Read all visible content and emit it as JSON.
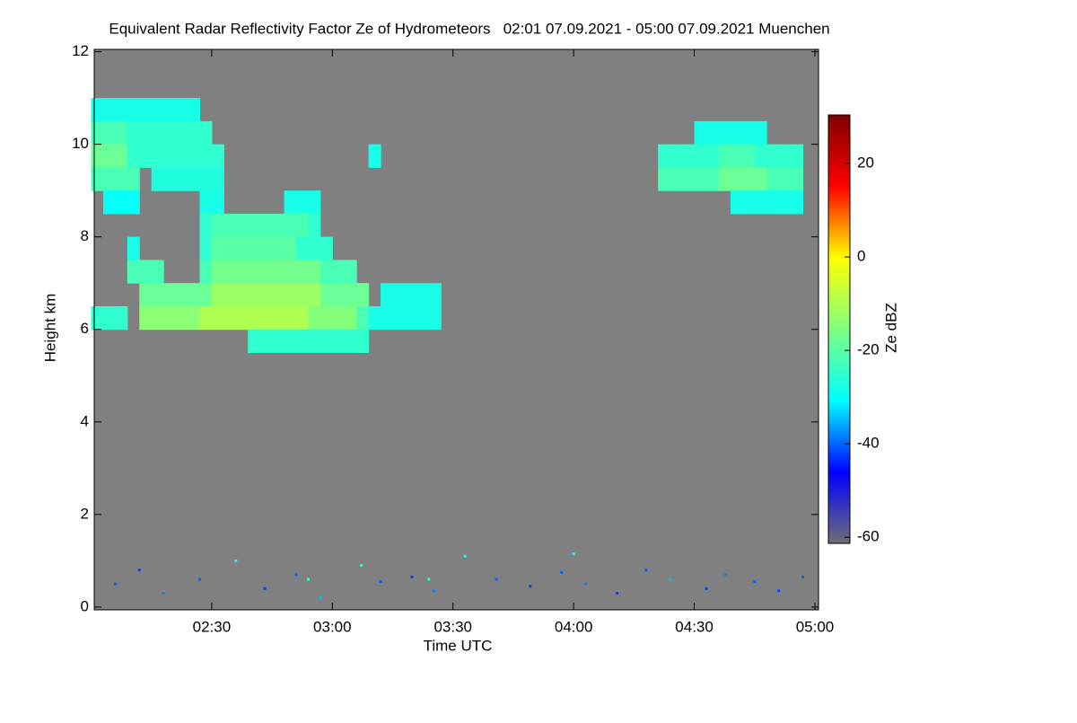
{
  "chart_data": {
    "type": "heatmap",
    "title": "Equivalent Radar Reflectivity Factor Ze of Hydrometeors   02:01 07.09.2021 - 05:00 07.09.2021 Muenchen",
    "xlabel": "Time UTC",
    "ylabel": "Height km",
    "colorbar_label": "Ze dBZ",
    "xlim": [
      2.013,
      5.015
    ],
    "ylim": [
      -0.06,
      12.05
    ],
    "zlim": [
      -61.3,
      30.4
    ],
    "xticks": [
      {
        "value": 2.5,
        "label": "02:30"
      },
      {
        "value": 3,
        "label": "03:00"
      },
      {
        "value": 3.5,
        "label": "03:30"
      },
      {
        "value": 4,
        "label": "04:00"
      },
      {
        "value": 4.5,
        "label": "04:30"
      },
      {
        "value": 5,
        "label": "05:00"
      }
    ],
    "yticks": [
      0,
      2,
      4,
      6,
      8,
      10,
      12
    ],
    "zticks": [
      -60,
      -40,
      -20,
      0,
      20
    ],
    "colormap": [
      "#6e6e78",
      "#0000ff",
      "#00ffff",
      "#80ff80",
      "#ffff00",
      "#ff0000",
      "#800000"
    ],
    "x": [
      2.025,
      2.075,
      2.125,
      2.175,
      2.225,
      2.275,
      2.325,
      2.375,
      2.425,
      2.475,
      2.525,
      2.575,
      2.625,
      2.675,
      2.725,
      2.775,
      2.825,
      2.875,
      2.925,
      2.975,
      3.025,
      3.075,
      3.125,
      3.175,
      3.225,
      3.275,
      3.325,
      3.375,
      3.425,
      3.475,
      3.525,
      3.575,
      3.625,
      3.675,
      3.725,
      3.775,
      3.825,
      3.875,
      3.925,
      3.975,
      4.025,
      4.075,
      4.125,
      4.175,
      4.225,
      4.275,
      4.325,
      4.375,
      4.425,
      4.475,
      4.525,
      4.575,
      4.625,
      4.675,
      4.725,
      4.775,
      4.825,
      4.875,
      4.925,
      4.975
    ],
    "y": [
      10.75,
      10.25,
      9.75,
      9.25,
      8.75,
      8.25,
      7.75,
      7.25,
      6.75,
      6.25,
      5.75
    ],
    "z": [
      [
        -28,
        -28,
        -28,
        -28,
        -28,
        -28,
        -28,
        -28,
        -28,
        null,
        null,
        null,
        null,
        null,
        null,
        null,
        null,
        null,
        null,
        null,
        null,
        null,
        null,
        null,
        null,
        null,
        null,
        null,
        null,
        null,
        null,
        null,
        null,
        null,
        null,
        null,
        null,
        null,
        null,
        null,
        null,
        null,
        null,
        null,
        null,
        null,
        null,
        null,
        null,
        null,
        null,
        null,
        null,
        null,
        null,
        null,
        null,
        null,
        null,
        null
      ],
      [
        -22,
        -22,
        -22,
        -25,
        -25,
        -25,
        -25,
        -25,
        -25,
        -25,
        null,
        null,
        null,
        null,
        null,
        null,
        null,
        null,
        null,
        null,
        null,
        null,
        null,
        null,
        null,
        null,
        null,
        null,
        null,
        null,
        null,
        null,
        null,
        null,
        null,
        null,
        null,
        null,
        null,
        null,
        null,
        null,
        null,
        null,
        null,
        null,
        null,
        null,
        null,
        null,
        -28,
        -28,
        -28,
        -28,
        -28,
        -28,
        null,
        null,
        null,
        null
      ],
      [
        -18,
        -18,
        -18,
        -25,
        -25,
        -25,
        -25,
        -25,
        -25,
        -25,
        -25,
        null,
        null,
        null,
        null,
        null,
        null,
        null,
        null,
        null,
        null,
        null,
        null,
        -28,
        null,
        null,
        null,
        null,
        null,
        null,
        null,
        null,
        null,
        null,
        null,
        null,
        null,
        null,
        null,
        null,
        null,
        null,
        null,
        null,
        null,
        null,
        null,
        -25,
        -25,
        -25,
        -25,
        -25,
        -22,
        -22,
        -22,
        -25,
        -25,
        -25,
        -25,
        null
      ],
      [
        -22,
        -22,
        -22,
        -22,
        null,
        -27,
        -27,
        -27,
        -27,
        -27,
        -27,
        null,
        null,
        null,
        null,
        null,
        null,
        null,
        null,
        null,
        null,
        null,
        null,
        null,
        null,
        null,
        null,
        null,
        null,
        null,
        null,
        null,
        null,
        null,
        null,
        null,
        null,
        null,
        null,
        null,
        null,
        null,
        null,
        null,
        null,
        null,
        null,
        -22,
        -22,
        -22,
        -22,
        -22,
        -18,
        -18,
        -18,
        -18,
        -22,
        -22,
        -22,
        null
      ],
      [
        null,
        -30,
        -30,
        -30,
        null,
        null,
        null,
        null,
        null,
        -28,
        -28,
        null,
        null,
        null,
        null,
        null,
        -28,
        -28,
        -28,
        null,
        null,
        null,
        null,
        null,
        null,
        null,
        null,
        null,
        null,
        null,
        null,
        null,
        null,
        null,
        null,
        null,
        null,
        null,
        null,
        null,
        null,
        null,
        null,
        null,
        null,
        null,
        null,
        null,
        null,
        null,
        null,
        null,
        null,
        -28,
        -28,
        -28,
        -28,
        -28,
        -28,
        null
      ],
      [
        null,
        null,
        null,
        null,
        null,
        null,
        null,
        null,
        null,
        -25,
        -22,
        -22,
        -22,
        -22,
        -22,
        -22,
        -22,
        -22,
        -25,
        null,
        null,
        null,
        null,
        null,
        null,
        null,
        null,
        null,
        null,
        null,
        null,
        null,
        null,
        null,
        null,
        null,
        null,
        null,
        null,
        null,
        null,
        null,
        null,
        null,
        null,
        null,
        null,
        null,
        null,
        null,
        null,
        null,
        null,
        null,
        null,
        null,
        null,
        null,
        null,
        null
      ],
      [
        null,
        null,
        null,
        -28,
        null,
        null,
        null,
        null,
        null,
        -25,
        -20,
        -20,
        -20,
        -20,
        -20,
        -20,
        -20,
        -25,
        -25,
        -25,
        null,
        null,
        null,
        null,
        null,
        null,
        null,
        null,
        null,
        null,
        null,
        null,
        null,
        null,
        null,
        null,
        null,
        null,
        null,
        null,
        null,
        null,
        null,
        null,
        null,
        null,
        null,
        null,
        null,
        null,
        null,
        null,
        null,
        null,
        null,
        null,
        null,
        null,
        null,
        null
      ],
      [
        null,
        null,
        null,
        -22,
        -22,
        -22,
        null,
        null,
        null,
        -22,
        -17,
        -17,
        -17,
        -17,
        -17,
        -17,
        -17,
        -17,
        -17,
        -22,
        -22,
        -22,
        null,
        null,
        null,
        null,
        null,
        null,
        null,
        null,
        null,
        null,
        null,
        null,
        null,
        null,
        null,
        null,
        null,
        null,
        null,
        null,
        null,
        null,
        null,
        null,
        null,
        null,
        null,
        null,
        null,
        null,
        null,
        null,
        null,
        null,
        null,
        null,
        null,
        null
      ],
      [
        null,
        null,
        null,
        null,
        -18,
        -18,
        -18,
        -18,
        -18,
        -18,
        -12,
        -12,
        -12,
        -12,
        -12,
        -12,
        -12,
        -12,
        -12,
        -18,
        -18,
        -18,
        -18,
        null,
        -28,
        -28,
        -28,
        -28,
        -28,
        null,
        null,
        null,
        null,
        null,
        null,
        null,
        null,
        null,
        null,
        null,
        null,
        null,
        null,
        null,
        null,
        null,
        null,
        null,
        null,
        null,
        null,
        null,
        null,
        null,
        null,
        null,
        null,
        null,
        null,
        null
      ],
      [
        -25,
        -25,
        -25,
        null,
        -14,
        -14,
        -14,
        -14,
        -14,
        -10,
        -10,
        -10,
        -10,
        -10,
        -10,
        -10,
        -10,
        -10,
        -15,
        -15,
        -15,
        -15,
        -22,
        -28,
        -28,
        -28,
        -28,
        -28,
        -28,
        null,
        null,
        null,
        null,
        null,
        null,
        null,
        null,
        null,
        null,
        null,
        null,
        null,
        null,
        null,
        null,
        null,
        null,
        null,
        null,
        null,
        null,
        null,
        null,
        null,
        null,
        null,
        null,
        null,
        null,
        null
      ],
      [
        null,
        null,
        null,
        null,
        null,
        null,
        null,
        null,
        null,
        null,
        null,
        null,
        null,
        -25,
        -25,
        -25,
        -25,
        -25,
        -25,
        -25,
        -25,
        -25,
        -25,
        null,
        null,
        null,
        null,
        null,
        null,
        null,
        null,
        null,
        null,
        null,
        null,
        null,
        null,
        null,
        null,
        null,
        null,
        null,
        null,
        null,
        null,
        null,
        null,
        null,
        null,
        null,
        null,
        null,
        null,
        null,
        null,
        null,
        null,
        null,
        null,
        null
      ]
    ],
    "echoes": {
      "x": [
        2.1,
        2.2,
        2.3,
        2.45,
        2.6,
        2.72,
        2.85,
        2.95,
        3.12,
        3.2,
        3.33,
        3.42,
        3.55,
        3.68,
        3.82,
        3.95,
        4.05,
        4.18,
        4.3,
        4.4,
        4.55,
        4.63,
        4.75,
        4.85,
        4.95,
        2.9,
        3.4,
        4.0
      ],
      "y": [
        0.5,
        0.8,
        0.3,
        0.6,
        1.0,
        0.4,
        0.7,
        0.2,
        0.9,
        0.55,
        0.65,
        0.35,
        1.1,
        0.6,
        0.45,
        0.75,
        0.5,
        0.3,
        0.8,
        0.6,
        0.4,
        0.7,
        0.55,
        0.35,
        0.65,
        0.6,
        0.6,
        1.15
      ],
      "values": [
        -40,
        -42,
        -38,
        -40,
        -30,
        -42,
        -40,
        -35,
        -28,
        -40,
        -42,
        -38,
        -30,
        -40,
        -42,
        -40,
        -38,
        -42,
        -40,
        -35,
        -42,
        -38,
        -40,
        -42,
        -40,
        -25,
        -25,
        -30
      ]
    }
  }
}
